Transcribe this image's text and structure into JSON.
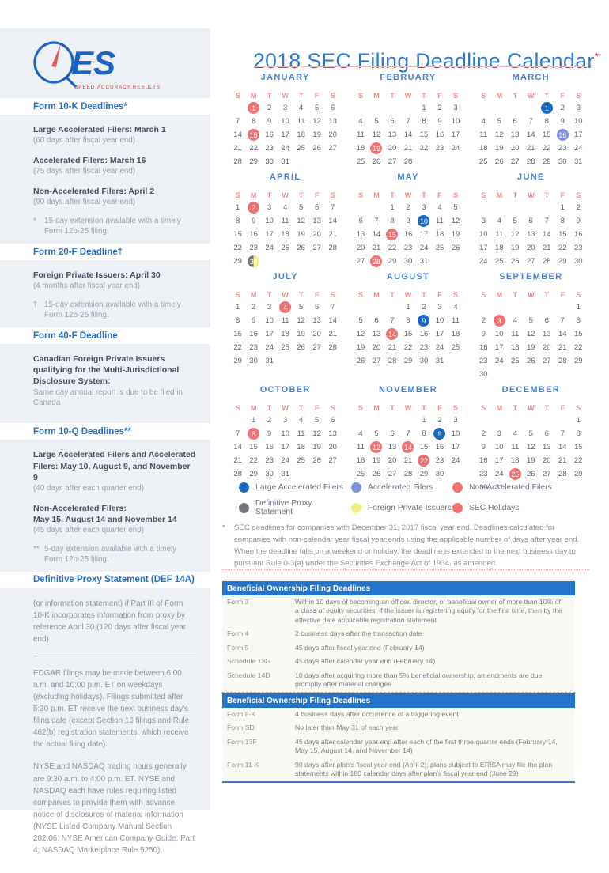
{
  "logo": {
    "text": "ES",
    "tagline": "SPEED.ACCURACY.RESULTS"
  },
  "title": {
    "text": "2018 SEC Filing Deadline Calendar",
    "asterisk": "*"
  },
  "sidebar": {
    "sections": [
      {
        "heading": "Form 10-K Deadlines*",
        "blocks": [
          {
            "bold": "Large Accelerated Filers: March 1",
            "sub": "(60 days after fiscal year end)"
          },
          {
            "bold": "Accelerated Filers: March 16",
            "sub": "(75 days after fiscal year end)"
          },
          {
            "bold": "Non-Accelerated Filers: April 2",
            "sub": "(90 days after fiscal year end)"
          },
          {
            "marker": "*",
            "text": "15-day extension available with a timely Form 12b-25 filing."
          }
        ]
      },
      {
        "heading": "Form 20-F Deadline†",
        "blocks": [
          {
            "bold": "Foreign Private Issuers: April 30",
            "sub": "(4 months after fiscal year end)"
          },
          {
            "marker": "†",
            "text": "15-day extension available with a timely Form 12b-25 filing."
          }
        ]
      },
      {
        "heading": "Form 40-F Deadline",
        "blocks": [
          {
            "bold": "Canadian Foreign Private Issuers qualifying for the Multi-Jurisdictional Disclosure System:",
            "sub": "Same day annual report is due to be filed in Canada"
          }
        ]
      },
      {
        "heading": "Form 10-Q Deadlines**",
        "blocks": [
          {
            "bold": "Large Accelerated Filers and Accelerated Filers: May 10, August 9, and November 9",
            "sub": "(40 days after each quarter end)"
          },
          {
            "bold": "Non-Accelerated Filers:\nMay 15, August 14 and November 14",
            "sub": "(45 days after each quarter end)"
          },
          {
            "marker": "**",
            "text": "5-day extension available with a timely Form 12b-25 filing."
          }
        ]
      },
      {
        "heading": "Definitive Proxy Statement (DEF 14A)",
        "blocks": [
          {
            "text": "(or information statement) if Part III of Form 10-K incorporates information from proxy by reference April 30 (120 days after fiscal year end)"
          },
          {
            "divider": true
          },
          {
            "text": "EDGAR filings may be made between 6:00 a.m. and 10:00 p.m. ET on weekdays (excluding holidays). Filings submitted after 5:30 p.m. ET receive the next business day's filing date (except Section 16 filings and Rule 462(b) registration statements, which receive the actual filing date)."
          },
          {
            "text": "NYSE and NASDAQ trading hours generally are 9:30 a.m. to 4:00 p.m. ET. NYSE and NASDAQ each have rules requiring listed companies to provide them with advance notice of disclosures of material information (NYSE Listed Company Manual Section 202.06; NYSE American Company Guide, Part 4; NASDAQ Marketplace Rule 5250)."
          }
        ]
      }
    ]
  },
  "calendar": {
    "day_headers": [
      "S",
      "M",
      "T",
      "W",
      "T",
      "F",
      "S"
    ],
    "mark_names": {
      "laf": "large-accelerated-filers",
      "af": "accelerated-filers",
      "naf": "non-accelerated-filers",
      "hol": "sec-holiday",
      "proxy_fpi": "proxy-and-foreign-private-issuers"
    },
    "months": [
      {
        "name": "JANUARY",
        "start": 1,
        "days": 31,
        "marks": {
          "1": "hol",
          "15": "hol"
        }
      },
      {
        "name": "FEBRUARY",
        "start": 4,
        "days": 28,
        "marks": {
          "19": "hol"
        }
      },
      {
        "name": "MARCH",
        "start": 4,
        "days": 31,
        "marks": {
          "1": "laf",
          "16": "af"
        }
      },
      {
        "name": "APRIL",
        "start": 0,
        "days": 30,
        "marks": {
          "2": "naf",
          "30": "proxy_fpi"
        }
      },
      {
        "name": "MAY",
        "start": 2,
        "days": 31,
        "marks": {
          "10": "laf",
          "15": "naf",
          "28": "hol"
        }
      },
      {
        "name": "JUNE",
        "start": 5,
        "days": 30,
        "marks": {}
      },
      {
        "name": "JULY",
        "start": 0,
        "days": 31,
        "marks": {
          "4": "hol"
        }
      },
      {
        "name": "AUGUST",
        "start": 3,
        "days": 31,
        "marks": {
          "9": "laf",
          "14": "naf"
        }
      },
      {
        "name": "SEPTEMBER",
        "start": 6,
        "days": 30,
        "marks": {
          "3": "hol"
        }
      },
      {
        "name": "OCTOBER",
        "start": 1,
        "days": 31,
        "marks": {
          "8": "hol"
        }
      },
      {
        "name": "NOVEMBER",
        "start": 4,
        "days": 30,
        "marks": {
          "9": "laf",
          "12": "hol",
          "14": "naf",
          "22": "hol"
        }
      },
      {
        "name": "DECEMBER",
        "start": 6,
        "days": 31,
        "marks": {
          "25": "hol"
        }
      }
    ]
  },
  "legend": {
    "items": [
      {
        "key": "large-accelerated-filers",
        "label": "Large Accelerated Filers",
        "color": "#1769c4"
      },
      {
        "key": "accelerated-filers",
        "label": "Accelerated Filers",
        "color": "#7d90dc"
      },
      {
        "key": "non-accelerated-filers",
        "label": "Non-Accelerated Filers",
        "color": "#f27171"
      },
      {
        "key": "definitive-proxy-statement",
        "label": "Definitive Proxy Statement",
        "color": "#73777e"
      },
      {
        "key": "foreign-private-issuers",
        "label": "Foreign Private Issuers",
        "color": "#f0ee7e"
      },
      {
        "key": "sec-holidays",
        "label": "SEC Holidays",
        "color": "#f27171"
      }
    ]
  },
  "footnote": {
    "marker": "*",
    "text": "SEC deadlines for companies with December 31, 2017 fiscal year end. Deadlines calculated for companies with non-calendar year fiscal year ends using the applicable number of days after year end. When the deadline falls on a weekend or holiday, the deadline is extended to the next business day to pursuant Rule 0-3(a) under the Securities Exchange Act of 1934, as amended."
  },
  "tables": [
    {
      "title": "Beneficial Ownership Filing Deadlines",
      "rows": [
        [
          "Form 3",
          "Within 10 days of becoming an officer, director, or beneficial owner of more than 10% of a class of equity securities; if the issuer is registering equity for the first time, then by the effective date applicable registration statement"
        ],
        [
          "Form 4",
          "2 business days after the transaction date"
        ],
        [
          "Form 5",
          "45 days after fiscal year end (February 14)"
        ],
        [
          "Schedule 13G",
          "45 days after calendar year end (February 14)"
        ],
        [
          "Schedule 14D",
          "10 days after acquiring more than 5% beneficial ownership; amendments are due promptly after material changes"
        ]
      ]
    },
    {
      "title": "Beneficial Ownership Filing Deadlines",
      "rows": [
        [
          "Form 8-K",
          "4 business days after occurrence of a triggering event"
        ],
        [
          "Form SD",
          "No later than May 31 of each year"
        ],
        [
          "Form 13F",
          "45 days after calendar year end after each of the first three quarter ends (February 14, May 15, August 14, and November 14)"
        ],
        [
          "Form 11-K",
          "90 days after plan's fiscal year end (April 2); plans subject to ERISA may file the plan statements within 180 calendar days after plan's fiscal year end (June 29)"
        ]
      ]
    }
  ],
  "colors": {
    "accent_blue": "#2e78cb",
    "sidebar_bg": "#edf1f6",
    "salmon": "#f27171",
    "table_header_bg": "#2273c9",
    "table_row_bg": "#fbf9f3"
  }
}
